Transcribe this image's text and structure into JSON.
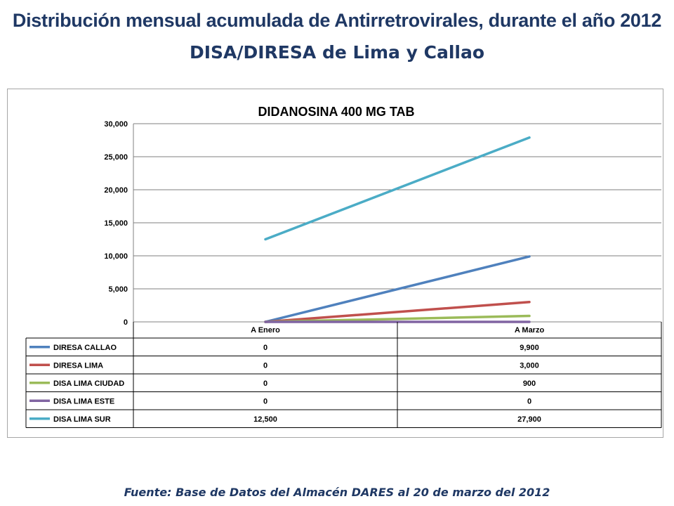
{
  "slide": {
    "title": "Distribución mensual acumulada de Antirretrovirales, durante el año 2012",
    "subtitle": "DISA/DIRESA de Lima y Callao",
    "source": "Fuente: Base de Datos del Almacén DARES al 20 de marzo del 2012"
  },
  "chart_data": {
    "type": "line",
    "title": "DIDANOSINA 400 MG TAB",
    "xlabel": "",
    "ylabel": "",
    "categories": [
      "A Enero",
      "A Marzo"
    ],
    "ylim": [
      0,
      30000
    ],
    "yticks": [
      0,
      5000,
      10000,
      15000,
      20000,
      25000,
      30000
    ],
    "ytick_labels": [
      "0",
      "5,000",
      "10,000",
      "15,000",
      "20,000",
      "25,000",
      "30,000"
    ],
    "grid": true,
    "legend_placement": "data-table-below",
    "series": [
      {
        "name": "DIRESA CALLAO",
        "color": "#4f81bd",
        "values": [
          0,
          9900
        ],
        "labels": [
          "0",
          "9,900"
        ]
      },
      {
        "name": "DIRESA LIMA",
        "color": "#c0504d",
        "values": [
          0,
          3000
        ],
        "labels": [
          "0",
          "3,000"
        ]
      },
      {
        "name": "DISA LIMA CIUDAD",
        "color": "#9bbb59",
        "values": [
          0,
          900
        ],
        "labels": [
          "0",
          "900"
        ]
      },
      {
        "name": "DISA LIMA ESTE",
        "color": "#8064a2",
        "values": [
          0,
          0
        ],
        "labels": [
          "0",
          "0"
        ]
      },
      {
        "name": "DISA LIMA SUR",
        "color": "#4bacc6",
        "values": [
          12500,
          27900
        ],
        "labels": [
          "12,500",
          "27,900"
        ]
      }
    ]
  }
}
